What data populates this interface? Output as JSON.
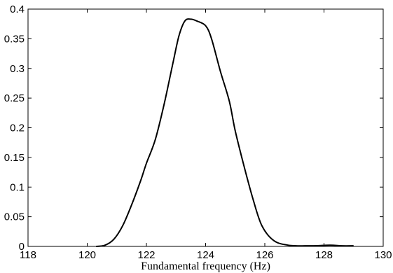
{
  "chart_data": {
    "type": "line",
    "title": "",
    "xlabel": "Fundamental frequency (Hz)",
    "ylabel": "",
    "xlim": [
      118,
      130
    ],
    "ylim": [
      0,
      0.4
    ],
    "grid": false,
    "x_ticks": [
      118,
      120,
      122,
      124,
      126,
      128,
      130
    ],
    "x_tick_labels": [
      "118",
      "120",
      "122",
      "124",
      "126",
      "128",
      "130"
    ],
    "y_ticks": [
      0,
      0.05,
      0.1,
      0.15,
      0.2,
      0.25,
      0.3,
      0.35,
      0.4
    ],
    "y_tick_labels": [
      "0",
      "0.05",
      "0.1",
      "0.15",
      "0.2",
      "0.25",
      "0.3",
      "0.35",
      "0.4"
    ],
    "series": [
      {
        "color": "#000000",
        "x": [
          120.3,
          120.6,
          120.9,
          121.2,
          121.5,
          121.8,
          122.0,
          122.3,
          122.6,
          122.9,
          123.1,
          123.3,
          123.5,
          123.7,
          124.0,
          124.2,
          124.5,
          124.8,
          125.0,
          125.3,
          125.6,
          125.9,
          126.3,
          126.8,
          127.5,
          128.2,
          128.6,
          129.0
        ],
        "y": [
          0.0,
          0.002,
          0.012,
          0.035,
          0.07,
          0.11,
          0.14,
          0.18,
          0.24,
          0.31,
          0.355,
          0.38,
          0.383,
          0.38,
          0.372,
          0.35,
          0.295,
          0.245,
          0.195,
          0.135,
          0.08,
          0.035,
          0.01,
          0.002,
          0.001,
          0.002,
          0.001,
          0.001
        ]
      }
    ]
  }
}
